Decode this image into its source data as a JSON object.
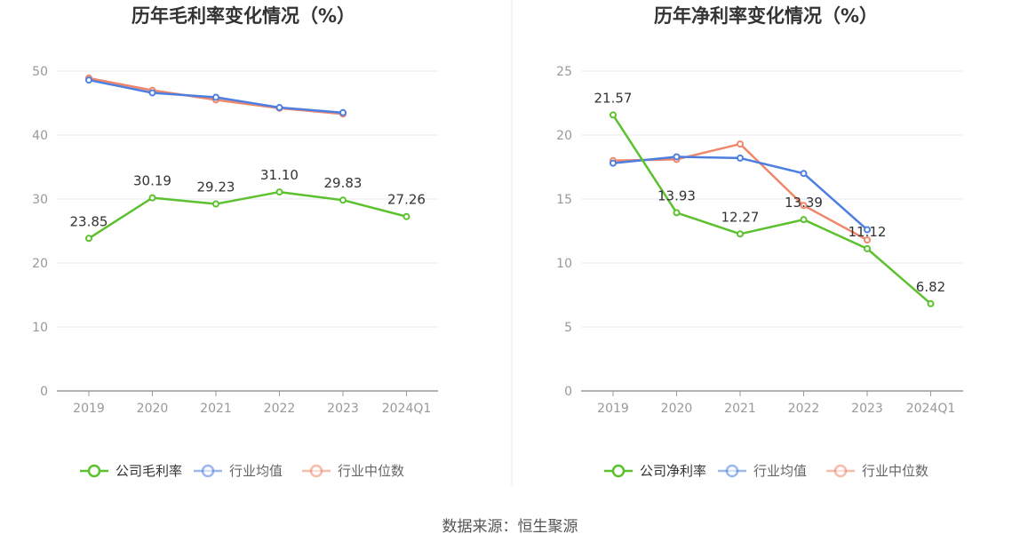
{
  "source": "数据来源：恒生聚源",
  "colors": {
    "company": "#5cc12e",
    "industry_avg": "#4c7fe0",
    "industry_median": "#f0866a",
    "axis": "#999999",
    "grid": "#e6e9f2"
  },
  "chart_data": [
    {
      "type": "line",
      "title": "历年毛利率变化情况（%）",
      "categories": [
        "2019",
        "2020",
        "2021",
        "2022",
        "2023",
        "2024Q1"
      ],
      "ylim": [
        0,
        50
      ],
      "yticks": [
        0,
        10,
        20,
        30,
        40,
        50
      ],
      "grid": true,
      "legend_position": "bottom-center",
      "series": [
        {
          "name": "公司毛利率",
          "key": "company",
          "values": [
            23.85,
            30.19,
            29.23,
            31.1,
            29.83,
            27.26
          ],
          "labels": [
            "23.85",
            "30.19",
            "29.23",
            "31.10",
            "29.83",
            "27.26"
          ]
        },
        {
          "name": "行业均值",
          "key": "industry_avg",
          "values": [
            48.6,
            46.6,
            45.9,
            44.3,
            43.5,
            null
          ]
        },
        {
          "name": "行业中位数",
          "key": "industry_median",
          "values": [
            48.9,
            47.0,
            45.5,
            44.2,
            43.3,
            null
          ]
        }
      ]
    },
    {
      "type": "line",
      "title": "历年净利率变化情况（%）",
      "categories": [
        "2019",
        "2020",
        "2021",
        "2022",
        "2023",
        "2024Q1"
      ],
      "ylim": [
        0,
        25
      ],
      "yticks": [
        0,
        5,
        10,
        15,
        20,
        25
      ],
      "grid": true,
      "legend_position": "bottom-center",
      "series": [
        {
          "name": "公司净利率",
          "key": "company",
          "values": [
            21.57,
            13.93,
            12.27,
            13.39,
            11.12,
            6.82
          ],
          "labels": [
            "21.57",
            "13.93",
            "12.27",
            "13.39",
            "11.12",
            "6.82"
          ]
        },
        {
          "name": "行业均值",
          "key": "industry_avg",
          "values": [
            17.8,
            18.3,
            18.2,
            17.0,
            12.6,
            null
          ]
        },
        {
          "name": "行业中位数",
          "key": "industry_median",
          "values": [
            18.0,
            18.1,
            19.3,
            14.5,
            11.8,
            null
          ]
        }
      ]
    }
  ]
}
